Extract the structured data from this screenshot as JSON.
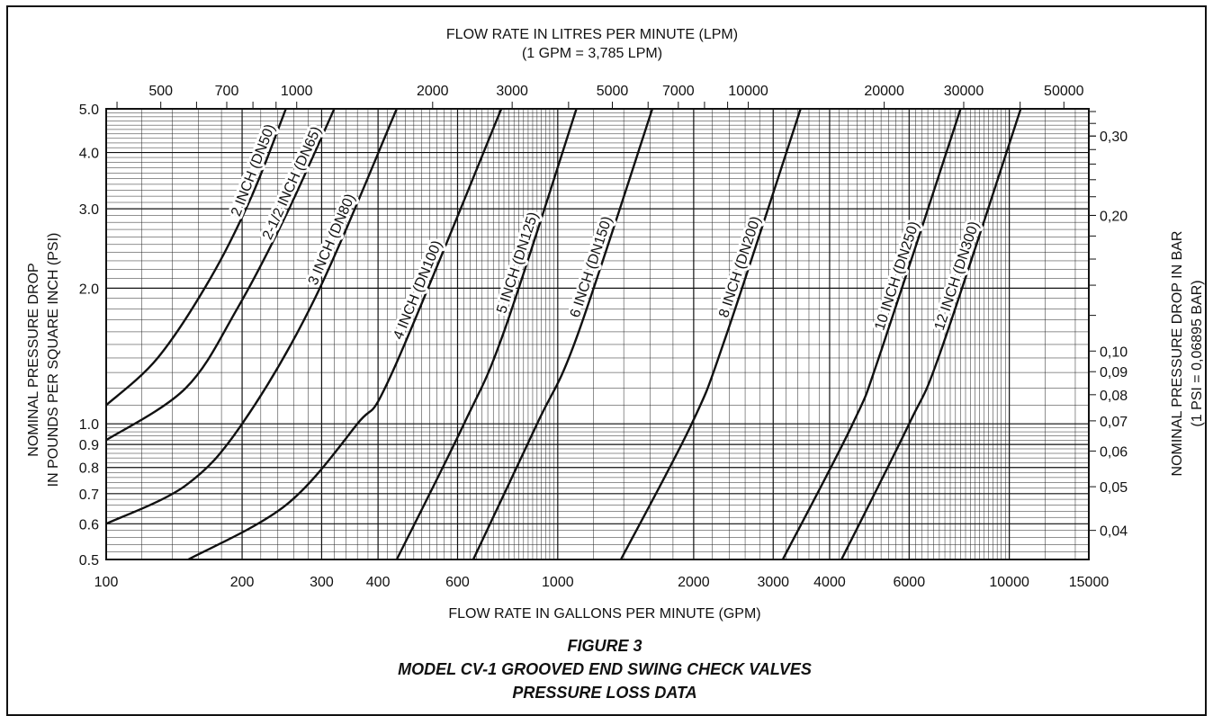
{
  "chart_data": {
    "type": "line",
    "x_scale": "log",
    "y_scale": "log",
    "grid": true,
    "title_top": "FLOW RATE IN LITRES PER MINUTE (LPM)",
    "subtitle_top": "(1 GPM = 3,785 LPM)",
    "xlabel": "FLOW RATE IN GALLONS PER MINUTE (GPM)",
    "ylabel_line1": "NOMINAL PRESSURE DROP",
    "ylabel_line2": "IN POUNDS PER SQUARE INCH (PSI)",
    "ylabel_right_line1": "NOMINAL PRESSURE DROP IN BAR",
    "ylabel_right_line2": "(1 PSI = 0,06895 BAR)",
    "xlim": [
      100,
      15000
    ],
    "ylim": [
      0.5,
      5.0
    ],
    "x_ticks": [
      "100",
      "200",
      "300",
      "400",
      "600",
      "1000",
      "2000",
      "3000",
      "4000",
      "6000",
      "10000",
      "15000"
    ],
    "y_ticks": [
      "0.5",
      "0.6",
      "0.7",
      "0.8",
      "0.9",
      "1.0",
      "2.0",
      "3.0",
      "4.0",
      "5.0"
    ],
    "top_ticks": [
      "500",
      "700",
      "1000",
      "2000",
      "3000",
      "5000",
      "7000",
      "10000",
      "20000",
      "30000",
      "50000"
    ],
    "right_ticks": [
      "0,30",
      "0,20",
      "0,10",
      "0,09",
      "0,08",
      "0,07",
      "0,06",
      "0,05",
      "0,04"
    ],
    "series": [
      {
        "name": "2 INCH (DN50)",
        "x": [
          100,
          130,
          170,
          210,
          250
        ],
        "y": [
          1.1,
          1.4,
          2.1,
          3.2,
          5.0
        ]
      },
      {
        "name": "2-1/2 INCH (DN65)",
        "x": [
          100,
          150,
          195,
          250,
          320
        ],
        "y": [
          0.92,
          1.2,
          1.8,
          2.9,
          5.0
        ]
      },
      {
        "name": "3 INCH (DN80)",
        "x": [
          100,
          150,
          200,
          290,
          440
        ],
        "y": [
          0.6,
          0.73,
          1.0,
          1.9,
          5.0
        ]
      },
      {
        "name": "4 INCH (DN100)",
        "x": [
          152,
          250,
          360,
          430,
          750
        ],
        "y": [
          0.5,
          0.66,
          1.0,
          1.3,
          5.0
        ]
      },
      {
        "name": "5 INCH (DN125)",
        "x": [
          440,
          620,
          760,
          1100
        ],
        "y": [
          0.5,
          1.0,
          1.6,
          5.0
        ]
      },
      {
        "name": "6 INCH (DN150)",
        "x": [
          650,
          900,
          1100,
          1620
        ],
        "y": [
          0.5,
          1.0,
          1.55,
          5.0
        ]
      },
      {
        "name": "8 INCH (DN200)",
        "x": [
          1380,
          1980,
          2350,
          3450
        ],
        "y": [
          0.5,
          1.0,
          1.55,
          5.0
        ]
      },
      {
        "name": "10 INCH (DN250)",
        "x": [
          3150,
          4500,
          5200,
          7800
        ],
        "y": [
          0.5,
          1.0,
          1.45,
          5.0
        ]
      },
      {
        "name": "12 INCH (DN300)",
        "x": [
          4250,
          6000,
          7050,
          10600
        ],
        "y": [
          0.5,
          1.0,
          1.45,
          5.0
        ]
      }
    ]
  },
  "caption": {
    "line1": "FIGURE 3",
    "line2": "MODEL CV-1 GROOVED END SWING CHECK VALVES",
    "line3": "PRESSURE LOSS DATA"
  }
}
